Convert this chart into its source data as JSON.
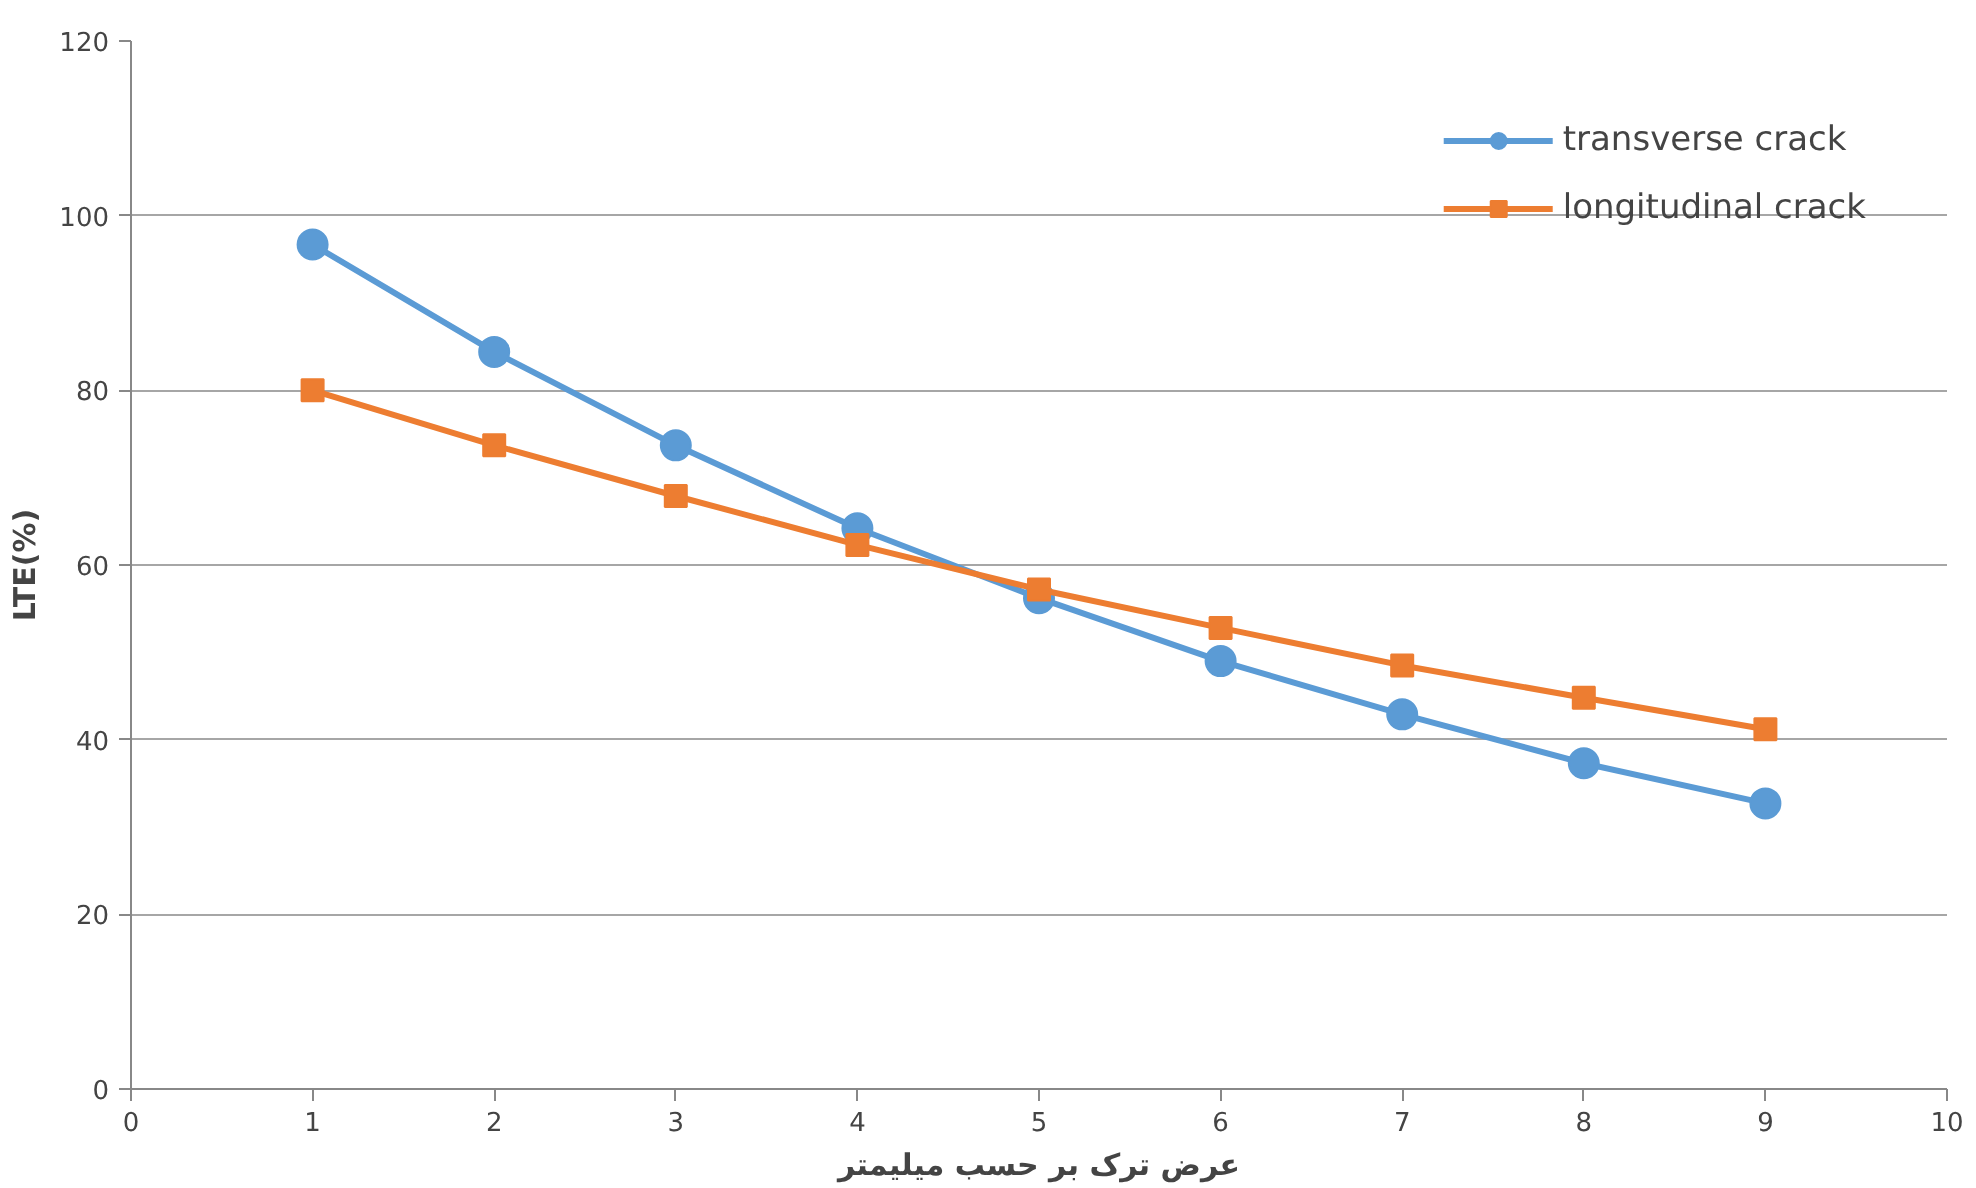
{
  "chart_data": {
    "type": "line",
    "xlabel": "عرض ترک بر حسب میلیمتر",
    "ylabel": "LTE(%)",
    "x": [
      1,
      2,
      3,
      4,
      5,
      6,
      7,
      8,
      9
    ],
    "series": [
      {
        "name": "transverse crack",
        "color": "#5b9bd5",
        "marker": "circle",
        "values": [
          96.7,
          84.4,
          73.7,
          64.2,
          56.2,
          49.0,
          42.9,
          37.3,
          32.7
        ]
      },
      {
        "name": "longitudinal crack",
        "color": "#ed7d31",
        "marker": "square",
        "values": [
          80.0,
          73.7,
          67.9,
          62.3,
          57.2,
          52.8,
          48.5,
          44.8,
          41.2
        ]
      }
    ],
    "xlim": [
      0,
      10
    ],
    "ylim": [
      0,
      120
    ],
    "xticks": [
      0,
      1,
      2,
      3,
      4,
      5,
      6,
      7,
      8,
      9,
      10
    ],
    "yticks": [
      0,
      20,
      40,
      60,
      80,
      100,
      120
    ],
    "grid": "y",
    "legend": "top right",
    "line_style": "solid"
  }
}
